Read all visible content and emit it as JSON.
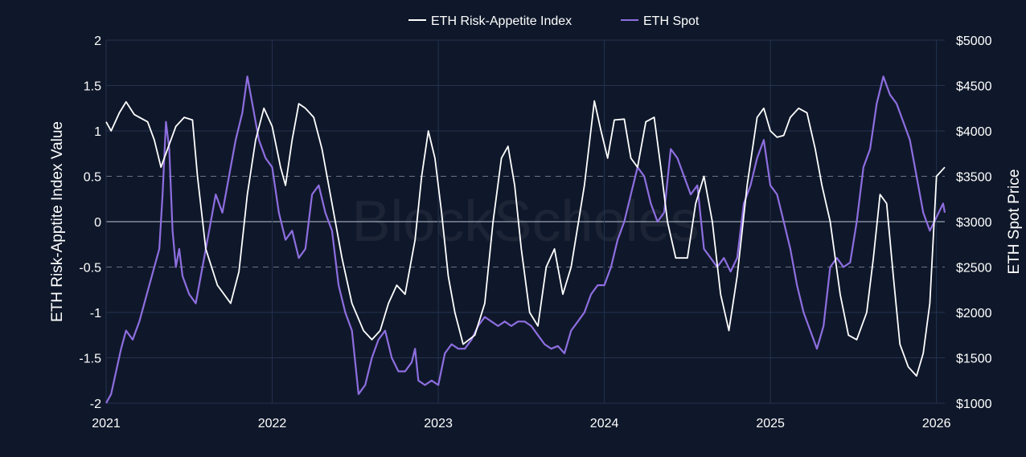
{
  "chart_data": {
    "type": "line",
    "watermark": "BlockScholes",
    "legend": {
      "position": "top-center"
    },
    "x": {
      "tick_labels": [
        "2021",
        "2022",
        "2023",
        "2024",
        "2025",
        "2026"
      ],
      "range": [
        2021.0,
        2026.05
      ]
    },
    "y_left": {
      "label": "ETH Risk-Apptite Index Value",
      "range": [
        -2,
        2
      ],
      "ticks": [
        2,
        1.5,
        1,
        0.5,
        0,
        -0.5,
        -1,
        -1.5,
        -2
      ],
      "tick_labels": [
        "2",
        "1.5",
        "1",
        "0.5",
        "0",
        "-0.5",
        "-1",
        "-1.5",
        "-2"
      ]
    },
    "y_right": {
      "label": "ETH Spot Price",
      "range": [
        1000,
        5000
      ],
      "ticks": [
        5000,
        4500,
        4000,
        3500,
        3000,
        2500,
        2000,
        1500,
        1000
      ],
      "tick_labels": [
        "$5000",
        "$4500",
        "$4000",
        "$3500",
        "$3000",
        "$2500",
        "$2000",
        "$1500",
        "$1000"
      ]
    },
    "grid": true,
    "series": [
      {
        "name": "ETH Risk-Appetite Index",
        "axis": "left",
        "color": "#ffffff",
        "points": [
          [
            2021.0,
            1.1
          ],
          [
            2021.03,
            1.0
          ],
          [
            2021.08,
            1.2
          ],
          [
            2021.12,
            1.32
          ],
          [
            2021.17,
            1.18
          ],
          [
            2021.25,
            1.1
          ],
          [
            2021.29,
            0.9
          ],
          [
            2021.33,
            0.6
          ],
          [
            2021.37,
            0.8
          ],
          [
            2021.42,
            1.05
          ],
          [
            2021.47,
            1.15
          ],
          [
            2021.52,
            1.12
          ],
          [
            2021.55,
            0.5
          ],
          [
            2021.6,
            -0.3
          ],
          [
            2021.67,
            -0.7
          ],
          [
            2021.75,
            -0.9
          ],
          [
            2021.8,
            -0.55
          ],
          [
            2021.85,
            0.3
          ],
          [
            2021.9,
            0.9
          ],
          [
            2021.95,
            1.25
          ],
          [
            2022.0,
            1.05
          ],
          [
            2022.05,
            0.6
          ],
          [
            2022.08,
            0.4
          ],
          [
            2022.12,
            0.9
          ],
          [
            2022.16,
            1.3
          ],
          [
            2022.2,
            1.25
          ],
          [
            2022.25,
            1.15
          ],
          [
            2022.3,
            0.8
          ],
          [
            2022.36,
            0.2
          ],
          [
            2022.42,
            -0.4
          ],
          [
            2022.48,
            -0.9
          ],
          [
            2022.55,
            -1.2
          ],
          [
            2022.6,
            -1.3
          ],
          [
            2022.65,
            -1.2
          ],
          [
            2022.7,
            -0.9
          ],
          [
            2022.75,
            -0.7
          ],
          [
            2022.8,
            -0.8
          ],
          [
            2022.86,
            -0.2
          ],
          [
            2022.9,
            0.5
          ],
          [
            2022.94,
            1.0
          ],
          [
            2022.98,
            0.7
          ],
          [
            2023.02,
            0.1
          ],
          [
            2023.06,
            -0.6
          ],
          [
            2023.1,
            -1.0
          ],
          [
            2023.15,
            -1.35
          ],
          [
            2023.22,
            -1.25
          ],
          [
            2023.28,
            -0.9
          ],
          [
            2023.33,
            0.0
          ],
          [
            2023.38,
            0.7
          ],
          [
            2023.42,
            0.83
          ],
          [
            2023.46,
            0.4
          ],
          [
            2023.5,
            -0.3
          ],
          [
            2023.55,
            -1.0
          ],
          [
            2023.6,
            -1.15
          ],
          [
            2023.65,
            -0.5
          ],
          [
            2023.7,
            -0.3
          ],
          [
            2023.75,
            -0.8
          ],
          [
            2023.8,
            -0.5
          ],
          [
            2023.88,
            0.4
          ],
          [
            2023.94,
            1.33
          ],
          [
            2023.98,
            1.0
          ],
          [
            2024.02,
            0.7
          ],
          [
            2024.06,
            1.12
          ],
          [
            2024.12,
            1.13
          ],
          [
            2024.16,
            0.7
          ],
          [
            2024.2,
            0.6
          ],
          [
            2024.25,
            1.1
          ],
          [
            2024.3,
            1.15
          ],
          [
            2024.34,
            0.6
          ],
          [
            2024.38,
            0.0
          ],
          [
            2024.43,
            -0.4
          ],
          [
            2024.5,
            -0.4
          ],
          [
            2024.55,
            0.2
          ],
          [
            2024.6,
            0.5
          ],
          [
            2024.65,
            0.0
          ],
          [
            2024.7,
            -0.8
          ],
          [
            2024.75,
            -1.2
          ],
          [
            2024.8,
            -0.6
          ],
          [
            2024.86,
            0.4
          ],
          [
            2024.92,
            1.15
          ],
          [
            2024.96,
            1.25
          ],
          [
            2025.0,
            1.0
          ],
          [
            2025.04,
            0.93
          ],
          [
            2025.08,
            0.95
          ],
          [
            2025.12,
            1.15
          ],
          [
            2025.17,
            1.25
          ],
          [
            2025.22,
            1.2
          ],
          [
            2025.27,
            0.8
          ],
          [
            2025.31,
            0.4
          ],
          [
            2025.36,
            0.0
          ],
          [
            2025.42,
            -0.8
          ],
          [
            2025.47,
            -1.25
          ],
          [
            2025.52,
            -1.3
          ],
          [
            2025.58,
            -1.0
          ],
          [
            2025.62,
            -0.4
          ],
          [
            2025.66,
            0.3
          ],
          [
            2025.7,
            0.2
          ],
          [
            2025.74,
            -0.6
          ],
          [
            2025.78,
            -1.35
          ],
          [
            2025.83,
            -1.6
          ],
          [
            2025.88,
            -1.7
          ],
          [
            2025.92,
            -1.45
          ],
          [
            2025.96,
            -0.9
          ],
          [
            2026.0,
            0.5
          ],
          [
            2026.05,
            0.6
          ]
        ]
      },
      {
        "name": "ETH Spot",
        "axis": "right",
        "color": "#8e6ee0",
        "points": [
          [
            2021.0,
            1000
          ],
          [
            2021.03,
            1100
          ],
          [
            2021.06,
            1350
          ],
          [
            2021.09,
            1600
          ],
          [
            2021.12,
            1800
          ],
          [
            2021.16,
            1700
          ],
          [
            2021.2,
            1900
          ],
          [
            2021.23,
            2100
          ],
          [
            2021.26,
            2300
          ],
          [
            2021.29,
            2500
          ],
          [
            2021.32,
            2700
          ],
          [
            2021.34,
            3300
          ],
          [
            2021.36,
            4100
          ],
          [
            2021.38,
            3800
          ],
          [
            2021.4,
            2900
          ],
          [
            2021.42,
            2500
          ],
          [
            2021.44,
            2700
          ],
          [
            2021.46,
            2400
          ],
          [
            2021.5,
            2200
          ],
          [
            2021.54,
            2100
          ],
          [
            2021.58,
            2500
          ],
          [
            2021.62,
            2900
          ],
          [
            2021.66,
            3300
          ],
          [
            2021.7,
            3100
          ],
          [
            2021.74,
            3500
          ],
          [
            2021.78,
            3900
          ],
          [
            2021.82,
            4200
          ],
          [
            2021.85,
            4600
          ],
          [
            2021.88,
            4300
          ],
          [
            2021.92,
            3900
          ],
          [
            2021.96,
            3700
          ],
          [
            2022.0,
            3600
          ],
          [
            2022.04,
            3100
          ],
          [
            2022.08,
            2800
          ],
          [
            2022.12,
            2900
          ],
          [
            2022.16,
            2600
          ],
          [
            2022.2,
            2700
          ],
          [
            2022.24,
            3300
          ],
          [
            2022.28,
            3400
          ],
          [
            2022.32,
            3100
          ],
          [
            2022.36,
            2900
          ],
          [
            2022.4,
            2300
          ],
          [
            2022.44,
            2000
          ],
          [
            2022.48,
            1800
          ],
          [
            2022.52,
            1100
          ],
          [
            2022.56,
            1200
          ],
          [
            2022.6,
            1500
          ],
          [
            2022.64,
            1700
          ],
          [
            2022.68,
            1800
          ],
          [
            2022.72,
            1500
          ],
          [
            2022.76,
            1350
          ],
          [
            2022.8,
            1350
          ],
          [
            2022.84,
            1450
          ],
          [
            2022.86,
            1600
          ],
          [
            2022.88,
            1250
          ],
          [
            2022.92,
            1200
          ],
          [
            2022.96,
            1250
          ],
          [
            2023.0,
            1200
          ],
          [
            2023.04,
            1550
          ],
          [
            2023.08,
            1650
          ],
          [
            2023.12,
            1600
          ],
          [
            2023.16,
            1600
          ],
          [
            2023.2,
            1700
          ],
          [
            2023.24,
            1850
          ],
          [
            2023.28,
            1950
          ],
          [
            2023.32,
            1900
          ],
          [
            2023.36,
            1850
          ],
          [
            2023.4,
            1900
          ],
          [
            2023.44,
            1850
          ],
          [
            2023.48,
            1900
          ],
          [
            2023.52,
            1900
          ],
          [
            2023.56,
            1850
          ],
          [
            2023.6,
            1750
          ],
          [
            2023.64,
            1650
          ],
          [
            2023.68,
            1600
          ],
          [
            2023.72,
            1630
          ],
          [
            2023.76,
            1550
          ],
          [
            2023.8,
            1800
          ],
          [
            2023.84,
            1900
          ],
          [
            2023.88,
            2000
          ],
          [
            2023.92,
            2200
          ],
          [
            2023.96,
            2300
          ],
          [
            2024.0,
            2300
          ],
          [
            2024.04,
            2500
          ],
          [
            2024.08,
            2800
          ],
          [
            2024.12,
            3000
          ],
          [
            2024.16,
            3300
          ],
          [
            2024.2,
            3600
          ],
          [
            2024.24,
            3500
          ],
          [
            2024.28,
            3200
          ],
          [
            2024.32,
            3000
          ],
          [
            2024.36,
            3100
          ],
          [
            2024.4,
            3800
          ],
          [
            2024.44,
            3700
          ],
          [
            2024.48,
            3500
          ],
          [
            2024.52,
            3300
          ],
          [
            2024.56,
            3400
          ],
          [
            2024.6,
            2700
          ],
          [
            2024.64,
            2600
          ],
          [
            2024.68,
            2500
          ],
          [
            2024.72,
            2600
          ],
          [
            2024.76,
            2450
          ],
          [
            2024.8,
            2600
          ],
          [
            2024.84,
            3200
          ],
          [
            2024.88,
            3400
          ],
          [
            2024.92,
            3700
          ],
          [
            2024.96,
            3900
          ],
          [
            2025.0,
            3400
          ],
          [
            2025.04,
            3300
          ],
          [
            2025.08,
            3000
          ],
          [
            2025.12,
            2700
          ],
          [
            2025.16,
            2300
          ],
          [
            2025.2,
            2000
          ],
          [
            2025.24,
            1800
          ],
          [
            2025.28,
            1600
          ],
          [
            2025.32,
            1850
          ],
          [
            2025.36,
            2500
          ],
          [
            2025.4,
            2600
          ],
          [
            2025.44,
            2500
          ],
          [
            2025.48,
            2550
          ],
          [
            2025.52,
            3000
          ],
          [
            2025.56,
            3600
          ],
          [
            2025.6,
            3800
          ],
          [
            2025.64,
            4300
          ],
          [
            2025.68,
            4600
          ],
          [
            2025.72,
            4400
          ],
          [
            2025.76,
            4300
          ],
          [
            2025.8,
            4100
          ],
          [
            2025.84,
            3900
          ],
          [
            2025.88,
            3500
          ],
          [
            2025.92,
            3100
          ],
          [
            2025.96,
            2900
          ],
          [
            2026.0,
            3050
          ],
          [
            2026.04,
            3200
          ],
          [
            2026.05,
            3100
          ]
        ]
      }
    ]
  }
}
